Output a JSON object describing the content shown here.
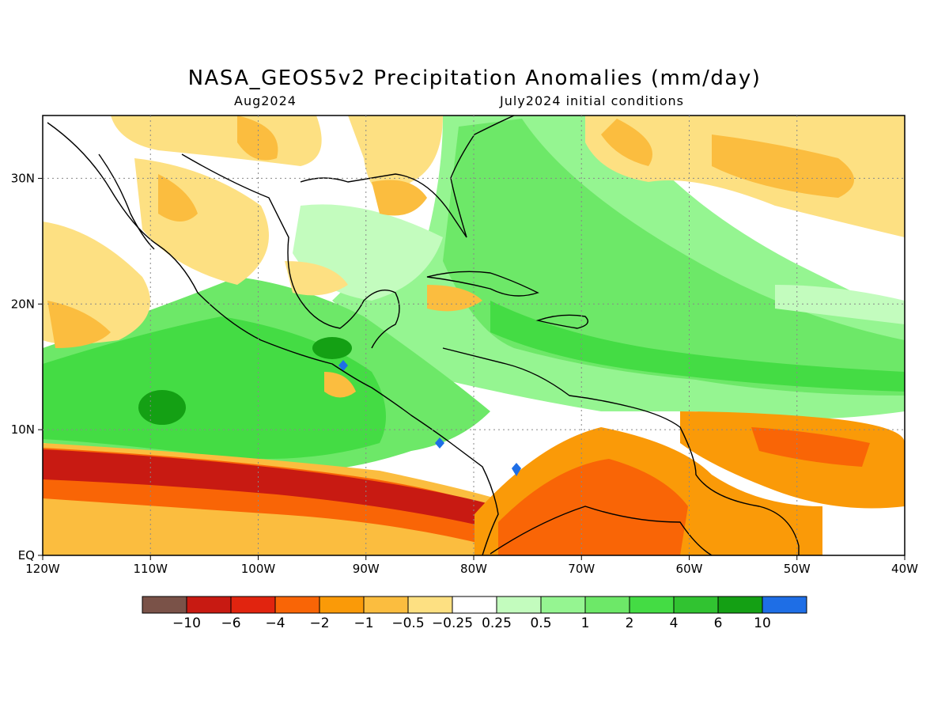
{
  "title": "NASA_GEOS5v2 Precipitation Anomalies (mm/day)",
  "subtitle_left": "Aug2024",
  "subtitle_right": "July2024 initial conditions",
  "map": {
    "lon_ticks": [
      "120W",
      "110W",
      "100W",
      "90W",
      "80W",
      "70W",
      "60W",
      "50W",
      "40W"
    ],
    "lat_ticks": [
      "EQ",
      "10N",
      "20N",
      "30N"
    ],
    "lon_range": [
      -120,
      -40
    ],
    "lat_range": [
      0,
      35
    ],
    "grid": "dotted"
  },
  "colorbar": {
    "labels": [
      "−10",
      "−6",
      "−4",
      "−2",
      "−1",
      "−0.5",
      "−0.25",
      "0.25",
      "0.5",
      "1",
      "2",
      "4",
      "6",
      "10"
    ],
    "colors": [
      "#7a5248",
      "#c81a12",
      "#e1240f",
      "#f96506",
      "#fa9a08",
      "#fbbd3f",
      "#fde082",
      "#ffffff",
      "#c3fcbe",
      "#95f591",
      "#6de868",
      "#44dc44",
      "#31c331",
      "#14a014",
      "#1e6ee6"
    ]
  },
  "colors": {
    "land_outline": "#000000",
    "frame": "#000000"
  }
}
